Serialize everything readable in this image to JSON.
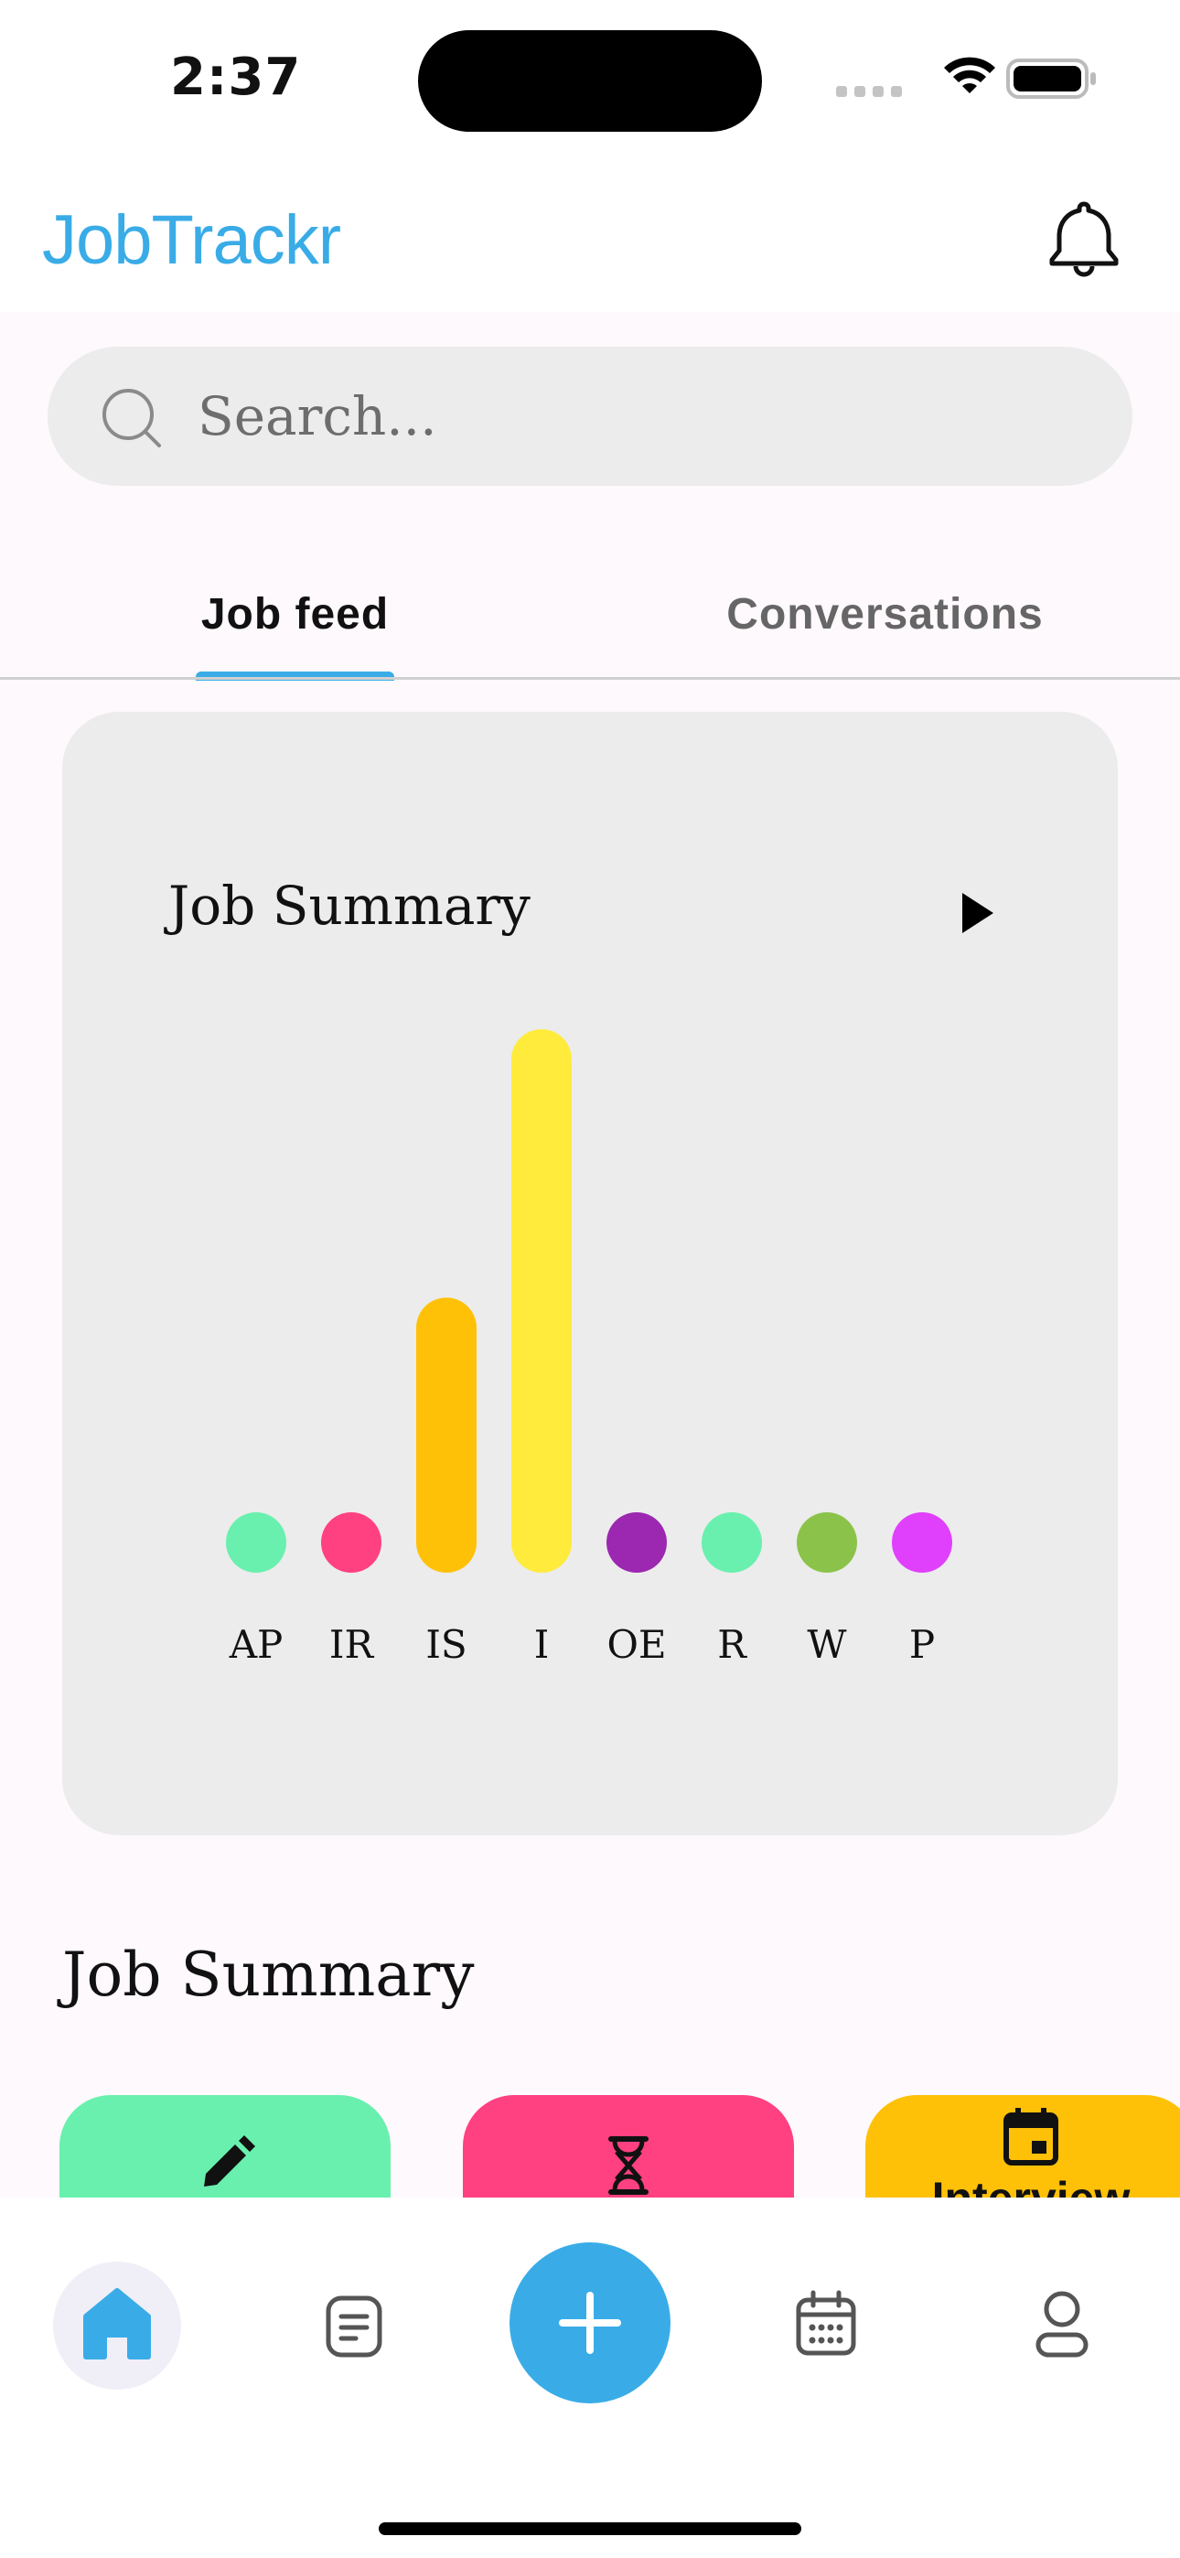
{
  "status_bar": {
    "time": "2:37"
  },
  "app": {
    "title": "JobTrackr"
  },
  "search": {
    "placeholder": "Search..."
  },
  "tabs": [
    {
      "label": "Job feed",
      "active": true
    },
    {
      "label": "Conversations",
      "active": false
    }
  ],
  "chart_card": {
    "title": "Job Summary",
    "play_icon": "play-icon"
  },
  "chart_data": {
    "type": "bar",
    "title": "Job Summary",
    "categories": [
      "AP",
      "IR",
      "IS",
      "I",
      "OE",
      "R",
      "W",
      "P"
    ],
    "values": [
      0,
      0,
      4,
      9,
      0,
      0,
      0,
      0
    ],
    "colors": [
      "#69f0ae",
      "#ff4081",
      "#ffc107",
      "#ffeb3b",
      "#9c27b0",
      "#69f0ae",
      "#8bc34a",
      "#e040fb"
    ],
    "ylim": [
      0,
      9
    ],
    "grid": false,
    "xlabel": "",
    "ylabel": ""
  },
  "section": {
    "title": "Job Summary"
  },
  "summary_cards": [
    {
      "icon": "pencil-icon",
      "label": "",
      "color": "#69f0ae"
    },
    {
      "icon": "hourglass-icon",
      "label": "",
      "color": "#ff4081"
    },
    {
      "icon": "calendar-icon",
      "label": "Interview",
      "color": "#ffc107"
    }
  ],
  "bottom_nav": [
    {
      "icon": "home-icon",
      "active": true
    },
    {
      "icon": "document-icon",
      "active": false
    },
    {
      "icon": "plus-icon",
      "active": false
    },
    {
      "icon": "calendar-icon",
      "active": false
    },
    {
      "icon": "profile-icon",
      "active": false
    }
  ],
  "colors": {
    "accent": "#39ace7",
    "card_bg": "#ececec"
  }
}
